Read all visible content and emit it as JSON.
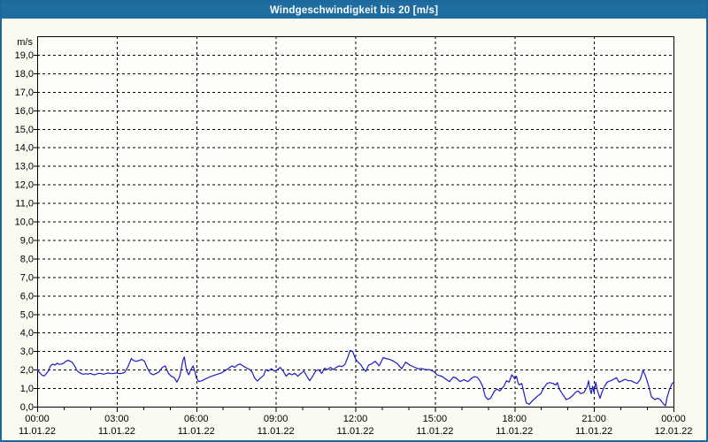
{
  "window": {
    "title": "Windgeschwindigkeit bis 20 [m/s]"
  },
  "colors": {
    "titlebar_bg": "#1E6CA0",
    "titlebar_text": "#FFFFFF",
    "window_border": "#1C689C",
    "page_bg": "#FAFAF0",
    "plot_bg": "#FEFEFA",
    "grid": "#000000",
    "axis": "#000000",
    "tick_text": "#000000",
    "series_line": "#1C1CC8"
  },
  "chart_data": {
    "type": "line",
    "title": "Windgeschwindigkeit bis 20 [m/s]",
    "ylabel": "m/s",
    "xlabel": "",
    "ylim": [
      0,
      20
    ],
    "xlim_hours": [
      0,
      24
    ],
    "grid": "dashed; horizontal every 1 m/s, vertical every 3 h",
    "legend_position": "none",
    "y_ticks": [
      {
        "v": 19,
        "label": "19,0"
      },
      {
        "v": 18,
        "label": "18,0"
      },
      {
        "v": 17,
        "label": "17,0"
      },
      {
        "v": 16,
        "label": "16,0"
      },
      {
        "v": 15,
        "label": "15,0"
      },
      {
        "v": 14,
        "label": "14,0"
      },
      {
        "v": 13,
        "label": "13,0"
      },
      {
        "v": 12,
        "label": "12,0"
      },
      {
        "v": 11,
        "label": "11,0"
      },
      {
        "v": 10,
        "label": "10,0"
      },
      {
        "v": 9,
        "label": "9,0"
      },
      {
        "v": 8,
        "label": "8,0"
      },
      {
        "v": 7,
        "label": "7,0"
      },
      {
        "v": 6,
        "label": "6,0"
      },
      {
        "v": 5,
        "label": "5,0"
      },
      {
        "v": 4,
        "label": "4,0"
      },
      {
        "v": 3,
        "label": "3,0"
      },
      {
        "v": 2,
        "label": "2,0"
      },
      {
        "v": 1,
        "label": "1,0"
      },
      {
        "v": 0,
        "label": "0,0"
      }
    ],
    "x_ticks": [
      {
        "hour": 0,
        "time": "00:00",
        "date": "11.01.22"
      },
      {
        "hour": 3,
        "time": "03:00",
        "date": "11.01.22"
      },
      {
        "hour": 6,
        "time": "06:00",
        "date": "11.01.22"
      },
      {
        "hour": 9,
        "time": "09:00",
        "date": "11.01.22"
      },
      {
        "hour": 12,
        "time": "12:00",
        "date": "11.01.22"
      },
      {
        "hour": 15,
        "time": "15:00",
        "date": "11.01.22"
      },
      {
        "hour": 18,
        "time": "18:00",
        "date": "11.01.22"
      },
      {
        "hour": 21,
        "time": "21:00",
        "date": "11.01.22"
      },
      {
        "hour": 24,
        "time": "00:00",
        "date": "12.01.22"
      }
    ],
    "x_minor_tick_hours": 1,
    "x_major_gridline_hours": 3,
    "series": [
      {
        "name": "Windgeschwindigkeit",
        "unit": "m/s",
        "color": "#1C1CC8",
        "points_t_hours_v_ms": [
          [
            0,
            2.0
          ],
          [
            0.08,
            1.85
          ],
          [
            0.17,
            1.72
          ],
          [
            0.25,
            1.65
          ],
          [
            0.33,
            1.75
          ],
          [
            0.42,
            1.92
          ],
          [
            0.5,
            2.2
          ],
          [
            0.58,
            2.3
          ],
          [
            0.67,
            2.25
          ],
          [
            0.75,
            2.35
          ],
          [
            0.83,
            2.28
          ],
          [
            0.92,
            2.3
          ],
          [
            1.0,
            2.35
          ],
          [
            1.08,
            2.45
          ],
          [
            1.17,
            2.5
          ],
          [
            1.25,
            2.45
          ],
          [
            1.33,
            2.38
          ],
          [
            1.42,
            2.18
          ],
          [
            1.5,
            1.95
          ],
          [
            1.58,
            1.85
          ],
          [
            1.67,
            1.78
          ],
          [
            1.75,
            1.75
          ],
          [
            1.83,
            1.78
          ],
          [
            1.92,
            1.75
          ],
          [
            2.0,
            1.8
          ],
          [
            2.08,
            1.75
          ],
          [
            2.17,
            1.72
          ],
          [
            2.25,
            1.76
          ],
          [
            2.33,
            1.8
          ],
          [
            2.42,
            1.78
          ],
          [
            2.5,
            1.75
          ],
          [
            2.58,
            1.78
          ],
          [
            2.67,
            1.82
          ],
          [
            2.75,
            1.8
          ],
          [
            2.83,
            1.78
          ],
          [
            2.92,
            1.8
          ],
          [
            3.0,
            1.82
          ],
          [
            3.1,
            1.78
          ],
          [
            3.2,
            1.8
          ],
          [
            3.3,
            1.85
          ],
          [
            3.42,
            2.15
          ],
          [
            3.55,
            2.6
          ],
          [
            3.62,
            2.5
          ],
          [
            3.72,
            2.45
          ],
          [
            3.83,
            2.48
          ],
          [
            3.95,
            2.55
          ],
          [
            4.05,
            2.45
          ],
          [
            4.15,
            2.1
          ],
          [
            4.27,
            1.8
          ],
          [
            4.38,
            1.72
          ],
          [
            4.5,
            1.8
          ],
          [
            4.6,
            1.88
          ],
          [
            4.72,
            2.12
          ],
          [
            4.83,
            2.2
          ],
          [
            4.95,
            1.8
          ],
          [
            5.05,
            1.65
          ],
          [
            5.17,
            1.56
          ],
          [
            5.27,
            1.32
          ],
          [
            5.38,
            1.65
          ],
          [
            5.5,
            2.52
          ],
          [
            5.55,
            2.68
          ],
          [
            5.6,
            2.2
          ],
          [
            5.65,
            1.88
          ],
          [
            5.72,
            1.72
          ],
          [
            5.78,
            1.96
          ],
          [
            5.88,
            2.2
          ],
          [
            5.95,
            1.88
          ],
          [
            6.0,
            1.56
          ],
          [
            6.1,
            1.35
          ],
          [
            6.22,
            1.4
          ],
          [
            6.35,
            1.5
          ],
          [
            6.5,
            1.6
          ],
          [
            6.65,
            1.68
          ],
          [
            6.8,
            1.75
          ],
          [
            6.95,
            1.82
          ],
          [
            7.1,
            1.95
          ],
          [
            7.25,
            2.1
          ],
          [
            7.35,
            2.2
          ],
          [
            7.45,
            2.12
          ],
          [
            7.55,
            2.25
          ],
          [
            7.65,
            2.3
          ],
          [
            7.78,
            2.18
          ],
          [
            7.9,
            2.08
          ],
          [
            8.0,
            2.02
          ],
          [
            8.1,
            1.88
          ],
          [
            8.2,
            1.55
          ],
          [
            8.3,
            1.38
          ],
          [
            8.45,
            1.58
          ],
          [
            8.55,
            1.7
          ],
          [
            8.62,
            2.0
          ],
          [
            8.72,
            1.92
          ],
          [
            8.83,
            2.05
          ],
          [
            8.95,
            1.92
          ],
          [
            9.06,
            2.0
          ],
          [
            9.17,
            2.12
          ],
          [
            9.28,
            1.92
          ],
          [
            9.39,
            1.64
          ],
          [
            9.5,
            1.8
          ],
          [
            9.61,
            1.72
          ],
          [
            9.72,
            1.8
          ],
          [
            9.83,
            1.64
          ],
          [
            9.95,
            1.8
          ],
          [
            10.06,
            1.92
          ],
          [
            10.17,
            1.64
          ],
          [
            10.28,
            1.4
          ],
          [
            10.39,
            1.64
          ],
          [
            10.5,
            1.92
          ],
          [
            10.61,
            2.0
          ],
          [
            10.73,
            1.8
          ],
          [
            10.84,
            2.08
          ],
          [
            10.95,
            2.0
          ],
          [
            11.06,
            2.12
          ],
          [
            11.17,
            2.0
          ],
          [
            11.28,
            2.12
          ],
          [
            11.4,
            2.2
          ],
          [
            11.5,
            2.16
          ],
          [
            11.61,
            2.28
          ],
          [
            11.72,
            2.68
          ],
          [
            11.8,
            3.03
          ],
          [
            11.9,
            2.98
          ],
          [
            12.0,
            2.6
          ],
          [
            12.1,
            2.4
          ],
          [
            12.2,
            2.28
          ],
          [
            12.3,
            2.05
          ],
          [
            12.4,
            1.9
          ],
          [
            12.5,
            2.25
          ],
          [
            12.6,
            2.3
          ],
          [
            12.75,
            2.45
          ],
          [
            12.9,
            2.2
          ],
          [
            13.05,
            2.65
          ],
          [
            13.15,
            2.6
          ],
          [
            13.3,
            2.55
          ],
          [
            13.45,
            2.45
          ],
          [
            13.6,
            2.3
          ],
          [
            13.75,
            2.05
          ],
          [
            13.9,
            2.4
          ],
          [
            14.05,
            2.25
          ],
          [
            14.2,
            2.15
          ],
          [
            14.35,
            2.05
          ],
          [
            14.5,
            2.06
          ],
          [
            14.65,
            2.0
          ],
          [
            14.8,
            2.0
          ],
          [
            14.95,
            1.9
          ],
          [
            15.1,
            1.7
          ],
          [
            15.25,
            1.65
          ],
          [
            15.4,
            1.5
          ],
          [
            15.55,
            1.35
          ],
          [
            15.7,
            1.6
          ],
          [
            15.8,
            1.55
          ],
          [
            15.95,
            1.35
          ],
          [
            16.1,
            1.45
          ],
          [
            16.25,
            1.35
          ],
          [
            16.4,
            1.55
          ],
          [
            16.5,
            1.62
          ],
          [
            16.6,
            1.58
          ],
          [
            16.7,
            1.4
          ],
          [
            16.8,
            1.1
          ],
          [
            16.9,
            0.55
          ],
          [
            17.0,
            0.38
          ],
          [
            17.1,
            0.45
          ],
          [
            17.25,
            0.85
          ],
          [
            17.35,
            0.95
          ],
          [
            17.45,
            0.85
          ],
          [
            17.6,
            1.1
          ],
          [
            17.7,
            1.4
          ],
          [
            17.8,
            1.32
          ],
          [
            17.9,
            1.72
          ],
          [
            18.02,
            1.5
          ],
          [
            18.08,
            1.64
          ],
          [
            18.13,
            1.32
          ],
          [
            18.18,
            1.17
          ],
          [
            18.28,
            1.25
          ],
          [
            18.33,
            0.93
          ],
          [
            18.45,
            0.2
          ],
          [
            18.56,
            0.13
          ],
          [
            18.67,
            0.3
          ],
          [
            18.78,
            0.45
          ],
          [
            18.9,
            0.6
          ],
          [
            19.0,
            0.7
          ],
          [
            19.1,
            1.0
          ],
          [
            19.23,
            1.25
          ],
          [
            19.33,
            1.3
          ],
          [
            19.46,
            1.25
          ],
          [
            19.56,
            1.17
          ],
          [
            19.62,
            1.3
          ],
          [
            19.7,
            0.93
          ],
          [
            19.85,
            0.6
          ],
          [
            19.95,
            0.38
          ],
          [
            20.07,
            0.45
          ],
          [
            20.2,
            0.6
          ],
          [
            20.3,
            0.77
          ],
          [
            20.4,
            0.85
          ],
          [
            20.5,
            0.7
          ],
          [
            20.63,
            0.77
          ],
          [
            20.75,
            1.1
          ],
          [
            20.8,
            1.4
          ],
          [
            20.85,
            0.93
          ],
          [
            20.9,
            0.7
          ],
          [
            20.95,
            1.1
          ],
          [
            21.0,
            0.77
          ],
          [
            21.07,
            1.32
          ],
          [
            21.12,
            0.93
          ],
          [
            21.17,
            0.7
          ],
          [
            21.23,
            0.45
          ],
          [
            21.3,
            0.77
          ],
          [
            21.4,
            1.1
          ],
          [
            21.5,
            1.32
          ],
          [
            21.63,
            1.4
          ],
          [
            21.75,
            1.48
          ],
          [
            21.85,
            1.56
          ],
          [
            21.95,
            1.32
          ],
          [
            22.07,
            1.4
          ],
          [
            22.17,
            1.48
          ],
          [
            22.3,
            1.4
          ],
          [
            22.4,
            1.4
          ],
          [
            22.5,
            1.32
          ],
          [
            22.63,
            1.25
          ],
          [
            22.75,
            1.48
          ],
          [
            22.8,
            1.72
          ],
          [
            22.85,
            1.96
          ],
          [
            22.9,
            1.8
          ],
          [
            22.95,
            1.64
          ],
          [
            23.07,
            1.1
          ],
          [
            23.17,
            0.53
          ],
          [
            23.3,
            0.38
          ],
          [
            23.4,
            0.45
          ],
          [
            23.5,
            0.38
          ],
          [
            23.63,
            0.13
          ],
          [
            23.7,
            0.05
          ],
          [
            23.75,
            0.45
          ],
          [
            23.85,
            0.93
          ],
          [
            23.95,
            1.25
          ],
          [
            24.0,
            1.3
          ]
        ]
      }
    ]
  }
}
